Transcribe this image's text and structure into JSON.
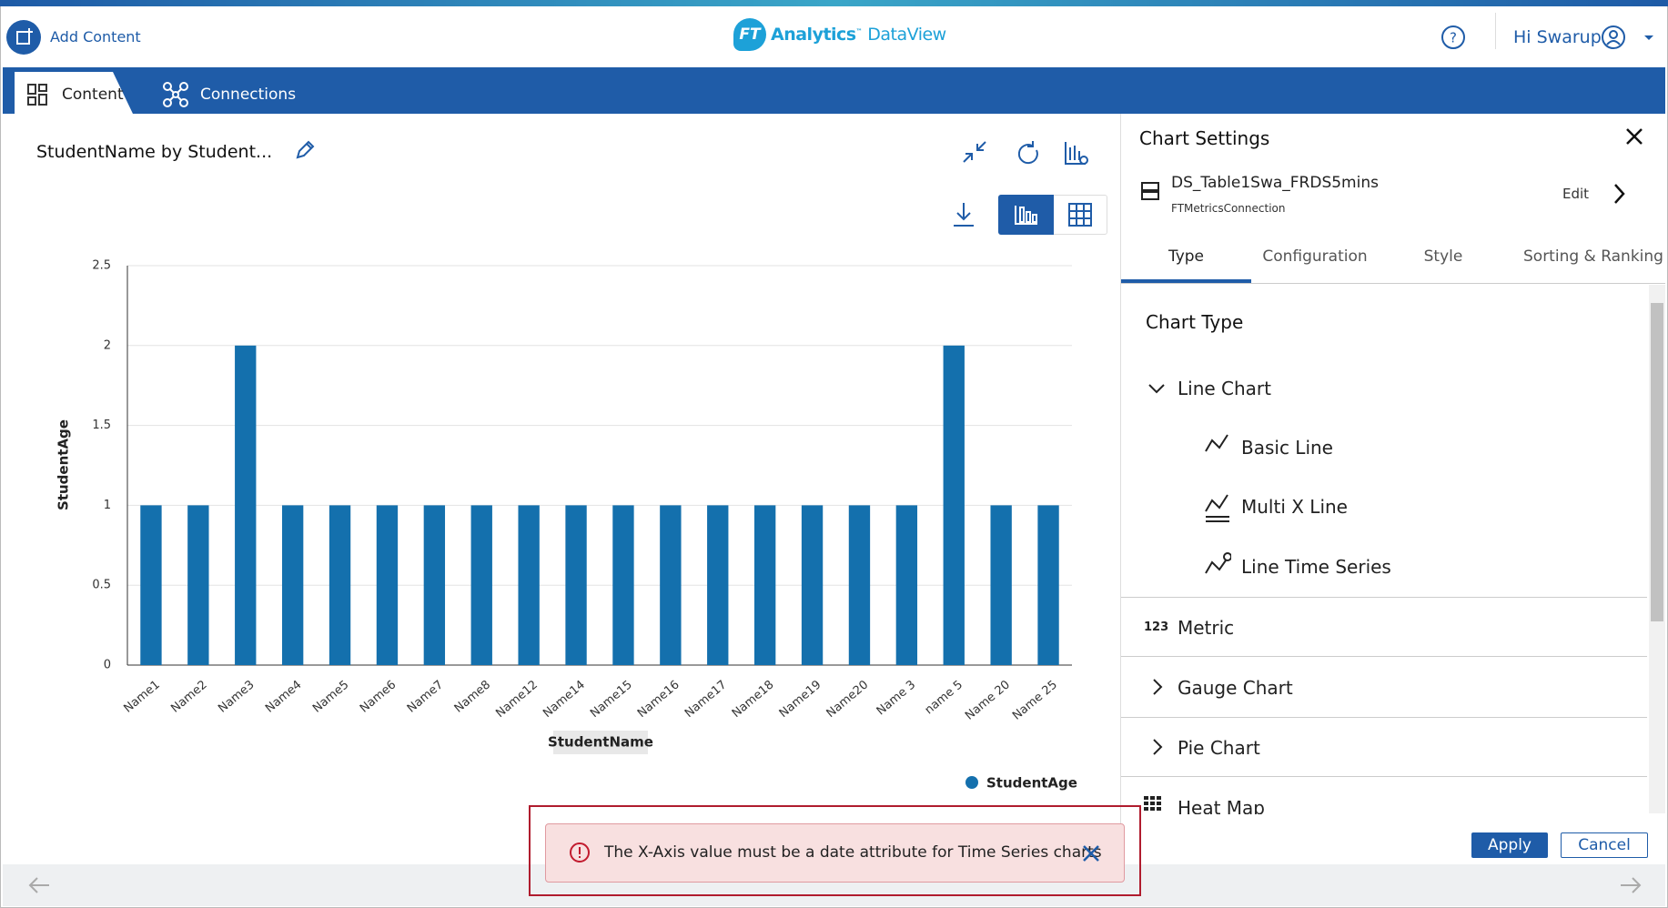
{
  "header": {
    "add_content": "Add Content",
    "logo_mark": "FT",
    "logo_main": "Analytics",
    "logo_tm": "™",
    "logo_sub": "DataView",
    "user": "Hi Swarup"
  },
  "nav": {
    "tabs": [
      "Content",
      "Connections"
    ]
  },
  "chart_panel": {
    "title": "StudentName by Student..."
  },
  "chart_data": {
    "type": "bar",
    "x_label": "StudentName",
    "y_label": "StudentAge",
    "categories": [
      "Name1",
      "Name2",
      "Name3",
      "Name4",
      "Name5",
      "Name6",
      "Name7",
      "Name8",
      "Name12",
      "Name14",
      "Name15",
      "Name16",
      "Name17",
      "Name18",
      "Name19",
      "Name20",
      "Name 3",
      "name 5",
      "Name 20",
      "Name 25"
    ],
    "series": [
      {
        "name": "StudentAge",
        "color": "#1470ad",
        "values": [
          1,
          1,
          2,
          1,
          1,
          1,
          1,
          1,
          1,
          1,
          1,
          1,
          1,
          1,
          1,
          1,
          1,
          2,
          1,
          1
        ]
      }
    ],
    "ylim": [
      0,
      2.5
    ],
    "yticks": [
      0,
      0.5,
      1,
      1.5,
      2,
      2.5
    ],
    "grid": true,
    "legend": "bottom-right"
  },
  "settings": {
    "title": "Chart Settings",
    "dataset": "DS_Table1Swa_FRDS5mins",
    "connection": "FTMetricsConnection",
    "edit": "Edit",
    "tabs": [
      "Type",
      "Configuration",
      "Style",
      "Sorting & Ranking"
    ],
    "section": "Chart Type",
    "group": "Line Chart",
    "line_types": [
      "Basic Line",
      "Multi X Line",
      "Line Time Series"
    ],
    "metric_icon": "123",
    "metric": "Metric",
    "others": [
      "Gauge Chart",
      "Pie Chart",
      "Heat Map"
    ],
    "apply": "Apply",
    "cancel": "Cancel"
  },
  "toast": {
    "message": "The X-Axis value must be a date attribute for Time Series charts"
  }
}
